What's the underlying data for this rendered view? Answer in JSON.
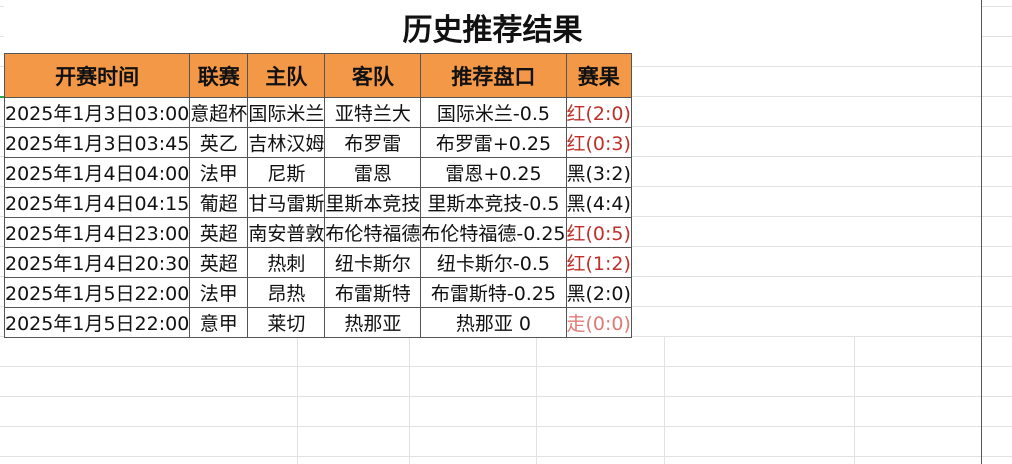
{
  "title": "历史推荐结果",
  "headers": [
    "开赛时间",
    "联赛",
    "主队",
    "客队",
    "推荐盘口",
    "赛果"
  ],
  "rows": [
    {
      "time": "2025年1月3日03:00",
      "league": "意超杯",
      "home": "国际米兰",
      "away": "亚特兰大",
      "pick": "国际米兰-0.5",
      "result": "红(2:0)",
      "result_type": "red"
    },
    {
      "time": "2025年1月3日03:45",
      "league": "英乙",
      "home": "吉林汉姆",
      "away": "布罗雷",
      "pick": "布罗雷+0.25",
      "result": "红(0:3)",
      "result_type": "red"
    },
    {
      "time": "2025年1月4日04:00",
      "league": "法甲",
      "home": "尼斯",
      "away": "雷恩",
      "pick": "雷恩+0.25",
      "result": "黑(3:2)",
      "result_type": "black"
    },
    {
      "time": "2025年1月4日04:15",
      "league": "葡超",
      "home": "甘马雷斯",
      "away": "里斯本竞技",
      "pick": "里斯本竞技-0.5",
      "result": "黑(4:4)",
      "result_type": "black"
    },
    {
      "time": "2025年1月4日23:00",
      "league": "英超",
      "home": "南安普敦",
      "away": "布伦特福德",
      "pick": "布伦特福德-0.25",
      "result": "红(0:5)",
      "result_type": "red"
    },
    {
      "time": "2025年1月4日20:30",
      "league": "英超",
      "home": "热刺",
      "away": "纽卡斯尔",
      "pick": "纽卡斯尔-0.5",
      "result": "红(1:2)",
      "result_type": "red"
    },
    {
      "time": "2025年1月5日22:00",
      "league": "法甲",
      "home": "昂热",
      "away": "布雷斯特",
      "pick": "布雷斯特-0.25",
      "result": "黑(2:0)",
      "result_type": "black"
    },
    {
      "time": "2025年1月5日22:00",
      "league": "意甲",
      "home": "莱切",
      "away": "热那亚",
      "pick": "热那亚 0",
      "result": "走(0:0)",
      "result_type": "push"
    }
  ],
  "colors": {
    "header_bg": "#f39847",
    "red": "#c0302a",
    "push": "#e07a74",
    "black": "#111111"
  }
}
